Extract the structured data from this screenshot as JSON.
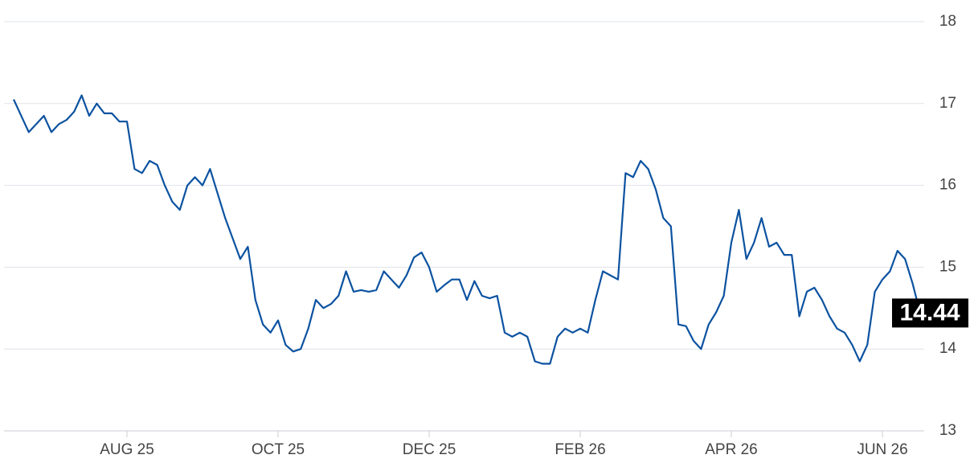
{
  "chart_data": {
    "type": "line",
    "categories": [
      null,
      null,
      null,
      null,
      null,
      null,
      null,
      null,
      null,
      null,
      null,
      null,
      null,
      null,
      null,
      "AUG 25",
      null,
      null,
      null,
      null,
      null,
      null,
      null,
      null,
      null,
      null,
      null,
      null,
      null,
      null,
      null,
      null,
      null,
      null,
      null,
      "OCT 25",
      null,
      null,
      null,
      null,
      null,
      null,
      null,
      null,
      null,
      null,
      null,
      null,
      null,
      null,
      null,
      null,
      null,
      null,
      null,
      "DEC 25",
      null,
      null,
      null,
      null,
      null,
      null,
      null,
      null,
      null,
      null,
      null,
      null,
      null,
      null,
      null,
      null,
      null,
      null,
      null,
      "FEB 26",
      null,
      null,
      null,
      null,
      null,
      null,
      null,
      null,
      null,
      null,
      null,
      null,
      null,
      null,
      null,
      null,
      null,
      null,
      null,
      "APR 26",
      null,
      null,
      null,
      null,
      null,
      null,
      null,
      null,
      null,
      null,
      null,
      null,
      null,
      null,
      null,
      null,
      null,
      null,
      null,
      "JUN 26",
      null,
      null,
      null,
      null,
      null
    ],
    "values": [
      17.05,
      16.85,
      16.65,
      16.75,
      16.85,
      16.65,
      16.75,
      16.8,
      16.9,
      17.1,
      16.85,
      17.0,
      16.88,
      16.88,
      16.78,
      16.78,
      16.2,
      16.15,
      16.3,
      16.25,
      16.0,
      15.8,
      15.7,
      16.0,
      16.1,
      16.0,
      16.2,
      15.9,
      15.6,
      15.35,
      15.1,
      15.25,
      14.6,
      14.3,
      14.2,
      14.35,
      14.05,
      13.97,
      14.0,
      14.25,
      14.6,
      14.5,
      14.55,
      14.65,
      14.95,
      14.7,
      14.72,
      14.7,
      14.72,
      14.95,
      14.85,
      14.75,
      14.9,
      15.12,
      15.18,
      15.0,
      14.7,
      14.78,
      14.85,
      14.85,
      14.6,
      14.83,
      14.65,
      14.62,
      14.65,
      14.2,
      14.15,
      14.2,
      14.15,
      13.85,
      13.82,
      13.82,
      14.15,
      14.25,
      14.2,
      14.25,
      14.2,
      14.6,
      14.95,
      14.9,
      14.85,
      16.15,
      16.1,
      16.3,
      16.2,
      15.95,
      15.6,
      15.5,
      14.3,
      14.28,
      14.1,
      14.0,
      14.3,
      14.45,
      14.65,
      15.3,
      15.7,
      15.1,
      15.3,
      15.6,
      15.25,
      15.3,
      15.15,
      15.15,
      14.4,
      14.7,
      14.75,
      14.6,
      14.4,
      14.25,
      14.2,
      14.05,
      13.85,
      14.05,
      14.7,
      14.85,
      14.95,
      15.2,
      15.1,
      14.8,
      14.44
    ],
    "color": "#0b52a0",
    "ylim": [
      13,
      18
    ],
    "yticks": [
      13,
      14,
      15,
      16,
      17,
      18
    ],
    "grid": true
  }
}
